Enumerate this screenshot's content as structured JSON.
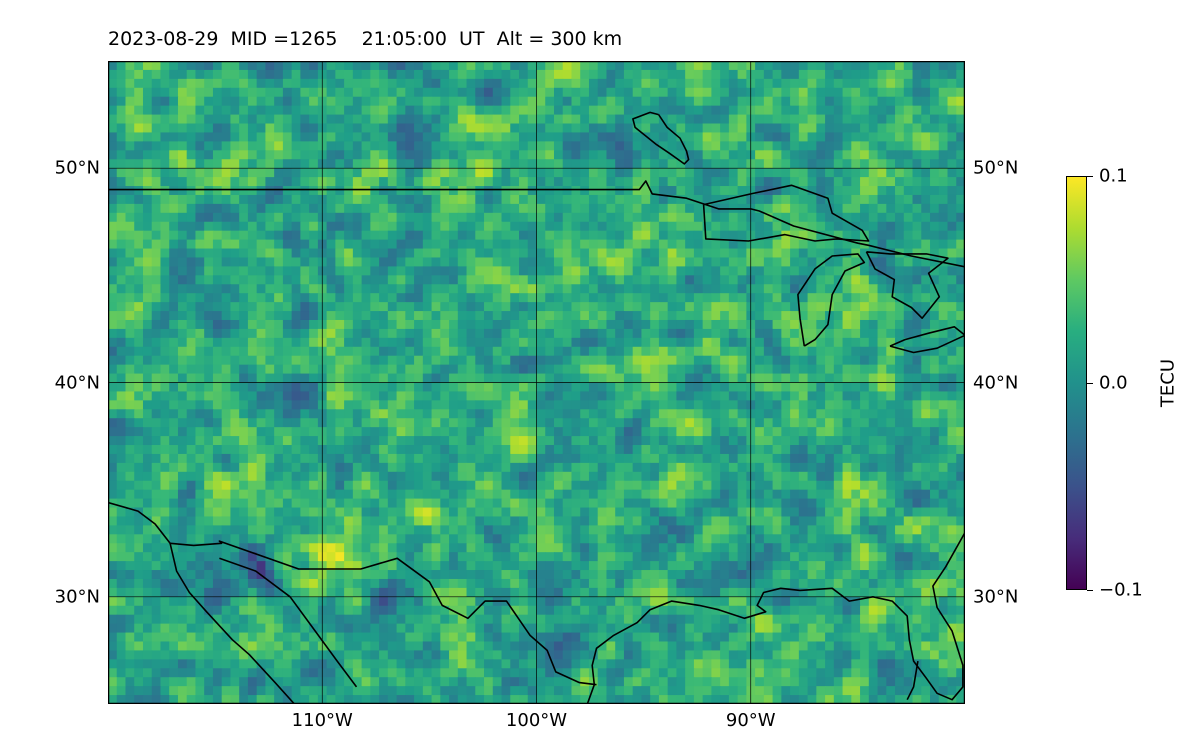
{
  "title": "2023-08-29  MID =1265    21:05:00  UT  Alt = 300 km",
  "map": {
    "projection": "plate-carree",
    "lon_range": [
      -120,
      -80
    ],
    "lat_range": [
      25,
      55
    ],
    "grid": true,
    "lat_ticks": [
      {
        "value": 30,
        "label": "30°N"
      },
      {
        "value": 40,
        "label": "40°N"
      },
      {
        "value": 50,
        "label": "50°N"
      }
    ],
    "lon_ticks": [
      {
        "value": -110,
        "label": "110°W"
      },
      {
        "value": -100,
        "label": "100°W"
      },
      {
        "value": -90,
        "label": "90°W"
      }
    ],
    "features": [
      "coastlines",
      "country-borders",
      "great-lakes"
    ]
  },
  "colorbar": {
    "label": "TECU",
    "colormap": "viridis",
    "min": -0.1,
    "max": 0.1,
    "ticks": [
      {
        "value": 0.1,
        "label": "0.1"
      },
      {
        "value": 0.0,
        "label": "0.0"
      },
      {
        "value": -0.1,
        "label": "−0.1"
      }
    ]
  }
}
